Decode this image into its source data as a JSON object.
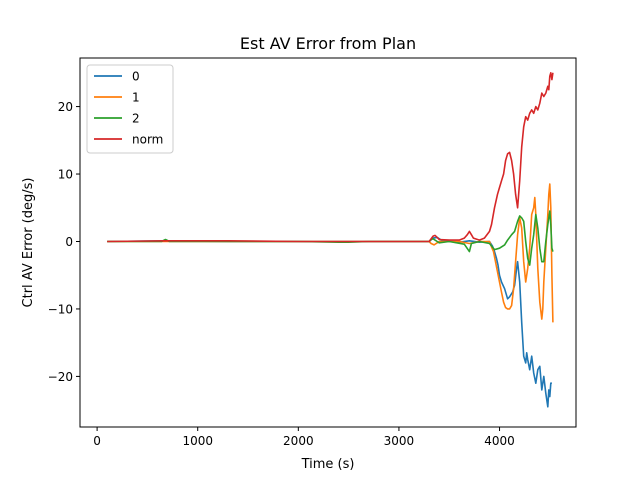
{
  "chart_data": {
    "type": "line",
    "title": "Est AV Error from Plan",
    "xlabel": "Time (s)",
    "ylabel": "Ctrl AV Error (deg/s)",
    "xlim": [
      -170,
      4760
    ],
    "ylim": [
      -27.5,
      27.2
    ],
    "xticks": [
      0,
      1000,
      2000,
      3000,
      4000
    ],
    "yticks": [
      -20,
      -10,
      0,
      10,
      20
    ],
    "grid": false,
    "legend_position": "top-left",
    "series": [
      {
        "name": "0",
        "color": "#1f77b4",
        "points": [
          [
            100,
            0
          ],
          [
            680,
            0.1
          ],
          [
            1300,
            0
          ],
          [
            2000,
            0
          ],
          [
            2500,
            0
          ],
          [
            3300,
            0
          ],
          [
            3340,
            0.5
          ],
          [
            3380,
            0.6
          ],
          [
            3420,
            0.2
          ],
          [
            3500,
            0
          ],
          [
            3600,
            -0.1
          ],
          [
            3700,
            0.1
          ],
          [
            3800,
            -0.1
          ],
          [
            3900,
            0
          ],
          [
            3930,
            -0.7
          ],
          [
            3950,
            -1.5
          ],
          [
            3970,
            -2.5
          ],
          [
            3985,
            -3.5
          ],
          [
            4000,
            -5
          ],
          [
            4020,
            -6
          ],
          [
            4050,
            -7
          ],
          [
            4080,
            -8.5
          ],
          [
            4100,
            -8.2
          ],
          [
            4130,
            -7.5
          ],
          [
            4150,
            -6.5
          ],
          [
            4170,
            -4
          ],
          [
            4180,
            -3
          ],
          [
            4200,
            -6
          ],
          [
            4220,
            -12
          ],
          [
            4240,
            -17
          ],
          [
            4260,
            -18
          ],
          [
            4270,
            -16.5
          ],
          [
            4280,
            -17.5
          ],
          [
            4300,
            -19
          ],
          [
            4320,
            -17
          ],
          [
            4340,
            -19.5
          ],
          [
            4360,
            -21
          ],
          [
            4380,
            -19
          ],
          [
            4400,
            -18.5
          ],
          [
            4420,
            -22
          ],
          [
            4440,
            -20
          ],
          [
            4460,
            -22.5
          ],
          [
            4480,
            -24.5
          ],
          [
            4490,
            -22
          ],
          [
            4500,
            -23
          ],
          [
            4510,
            -21
          ],
          [
            4520,
            -21
          ]
        ]
      },
      {
        "name": "1",
        "color": "#ff7f0e",
        "points": [
          [
            100,
            0
          ],
          [
            680,
            0
          ],
          [
            1300,
            0
          ],
          [
            2000,
            0
          ],
          [
            2500,
            0
          ],
          [
            3300,
            0
          ],
          [
            3320,
            -0.3
          ],
          [
            3350,
            -0.5
          ],
          [
            3380,
            -0.2
          ],
          [
            3400,
            0
          ],
          [
            3500,
            0
          ],
          [
            3600,
            0
          ],
          [
            3700,
            -0.3
          ],
          [
            3800,
            0
          ],
          [
            3900,
            0
          ],
          [
            3920,
            -0.8
          ],
          [
            3940,
            -1.5
          ],
          [
            3960,
            -3
          ],
          [
            3980,
            -4.5
          ],
          [
            4000,
            -6
          ],
          [
            4020,
            -7.5
          ],
          [
            4040,
            -9
          ],
          [
            4060,
            -9.8
          ],
          [
            4080,
            -10
          ],
          [
            4100,
            -10
          ],
          [
            4120,
            -9.5
          ],
          [
            4140,
            -7
          ],
          [
            4160,
            -3
          ],
          [
            4180,
            1
          ],
          [
            4200,
            3.5
          ],
          [
            4220,
            2
          ],
          [
            4240,
            -3
          ],
          [
            4260,
            -6
          ],
          [
            4280,
            -4
          ],
          [
            4300,
            -1
          ],
          [
            4320,
            4
          ],
          [
            4340,
            5
          ],
          [
            4350,
            6.5
          ],
          [
            4360,
            4
          ],
          [
            4380,
            -4
          ],
          [
            4400,
            -9
          ],
          [
            4420,
            -11.5
          ],
          [
            4430,
            -10
          ],
          [
            4440,
            -6
          ],
          [
            4460,
            -1
          ],
          [
            4480,
            4
          ],
          [
            4490,
            7
          ],
          [
            4500,
            8.5
          ],
          [
            4510,
            5
          ],
          [
            4520,
            -5
          ],
          [
            4530,
            -12
          ]
        ]
      },
      {
        "name": "2",
        "color": "#2ca02c",
        "points": [
          [
            100,
            0
          ],
          [
            640,
            0
          ],
          [
            680,
            0.3
          ],
          [
            720,
            0
          ],
          [
            1300,
            0
          ],
          [
            2000,
            0
          ],
          [
            2400,
            -0.1
          ],
          [
            2500,
            -0.1
          ],
          [
            2700,
            0
          ],
          [
            3000,
            0
          ],
          [
            3300,
            0
          ],
          [
            3320,
            0.3
          ],
          [
            3340,
            0.4
          ],
          [
            3380,
            0
          ],
          [
            3400,
            -0.2
          ],
          [
            3500,
            0
          ],
          [
            3650,
            -0.4
          ],
          [
            3700,
            -1.5
          ],
          [
            3720,
            -0.3
          ],
          [
            3800,
            0
          ],
          [
            3900,
            -0.3
          ],
          [
            3950,
            -1.2
          ],
          [
            4000,
            -1
          ],
          [
            4050,
            -0.5
          ],
          [
            4080,
            0.2
          ],
          [
            4120,
            1
          ],
          [
            4150,
            1.5
          ],
          [
            4180,
            3
          ],
          [
            4200,
            3.8
          ],
          [
            4220,
            3.5
          ],
          [
            4240,
            3
          ],
          [
            4260,
            0
          ],
          [
            4280,
            -2.5
          ],
          [
            4300,
            -3.5
          ],
          [
            4320,
            -1
          ],
          [
            4340,
            1
          ],
          [
            4360,
            4
          ],
          [
            4380,
            2
          ],
          [
            4400,
            -1
          ],
          [
            4420,
            -3
          ],
          [
            4440,
            -3
          ],
          [
            4460,
            0
          ],
          [
            4480,
            2.5
          ],
          [
            4500,
            4.5
          ],
          [
            4510,
            2.5
          ],
          [
            4520,
            -1
          ],
          [
            4530,
            -1.5
          ]
        ]
      },
      {
        "name": "norm",
        "color": "#d62728",
        "points": [
          [
            100,
            0
          ],
          [
            680,
            0.1
          ],
          [
            1300,
            0.1
          ],
          [
            2000,
            0
          ],
          [
            2500,
            0
          ],
          [
            3300,
            0
          ],
          [
            3320,
            0.4
          ],
          [
            3340,
            0.8
          ],
          [
            3360,
            0.9
          ],
          [
            3380,
            0.6
          ],
          [
            3400,
            0.3
          ],
          [
            3500,
            0.2
          ],
          [
            3600,
            0.2
          ],
          [
            3650,
            0.5
          ],
          [
            3680,
            1
          ],
          [
            3700,
            1.5
          ],
          [
            3720,
            1
          ],
          [
            3740,
            0.5
          ],
          [
            3800,
            0.2
          ],
          [
            3850,
            0.5
          ],
          [
            3900,
            1.5
          ],
          [
            3920,
            2.5
          ],
          [
            3950,
            5
          ],
          [
            3980,
            7
          ],
          [
            4000,
            8
          ],
          [
            4020,
            9
          ],
          [
            4040,
            10
          ],
          [
            4060,
            12
          ],
          [
            4080,
            13
          ],
          [
            4100,
            13.2
          ],
          [
            4120,
            12
          ],
          [
            4140,
            10
          ],
          [
            4160,
            7
          ],
          [
            4180,
            5
          ],
          [
            4200,
            9
          ],
          [
            4220,
            14
          ],
          [
            4240,
            17
          ],
          [
            4260,
            18.5
          ],
          [
            4280,
            18
          ],
          [
            4300,
            19
          ],
          [
            4320,
            19.5
          ],
          [
            4340,
            19
          ],
          [
            4360,
            20
          ],
          [
            4380,
            19.5
          ],
          [
            4400,
            20.5
          ],
          [
            4420,
            22
          ],
          [
            4440,
            21.5
          ],
          [
            4460,
            22
          ],
          [
            4480,
            23
          ],
          [
            4490,
            22.5
          ],
          [
            4500,
            24.5
          ],
          [
            4510,
            25
          ],
          [
            4520,
            24
          ],
          [
            4530,
            25
          ]
        ]
      }
    ]
  }
}
